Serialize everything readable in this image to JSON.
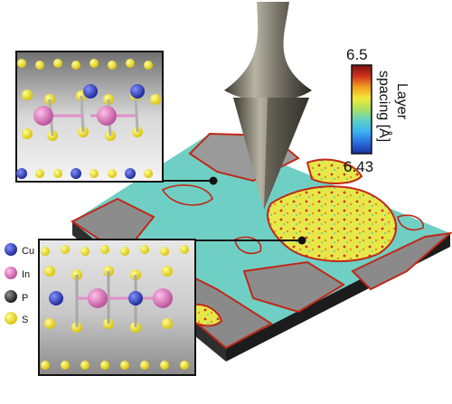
{
  "colorbar": {
    "max_label": "6.5",
    "min_label": "6.43",
    "title_line1": "Layer",
    "title_line2": "spacing [Å]",
    "colors": [
      "#1a2fa0",
      "#2a6fe0",
      "#39b3f0",
      "#5fd0c8",
      "#a8e060",
      "#f2e83a",
      "#f0a020",
      "#d2321e",
      "#7a0f10"
    ]
  },
  "legend": {
    "items": [
      {
        "label": "Cu",
        "color": "#2233a8"
      },
      {
        "label": "In",
        "color": "#d873b8"
      },
      {
        "label": "P",
        "color": "#2a2a2a"
      },
      {
        "label": "S",
        "color": "#f2e21a"
      }
    ]
  },
  "panels": {
    "top": {
      "name": "low-spacing-structure"
    },
    "bottom": {
      "name": "high-spacing-structure"
    }
  },
  "colors": {
    "surface_base": "#6fcfc4",
    "surface_edge": "#3a3a3a",
    "tip": "#8a8675",
    "domain_border": "#c02818"
  }
}
